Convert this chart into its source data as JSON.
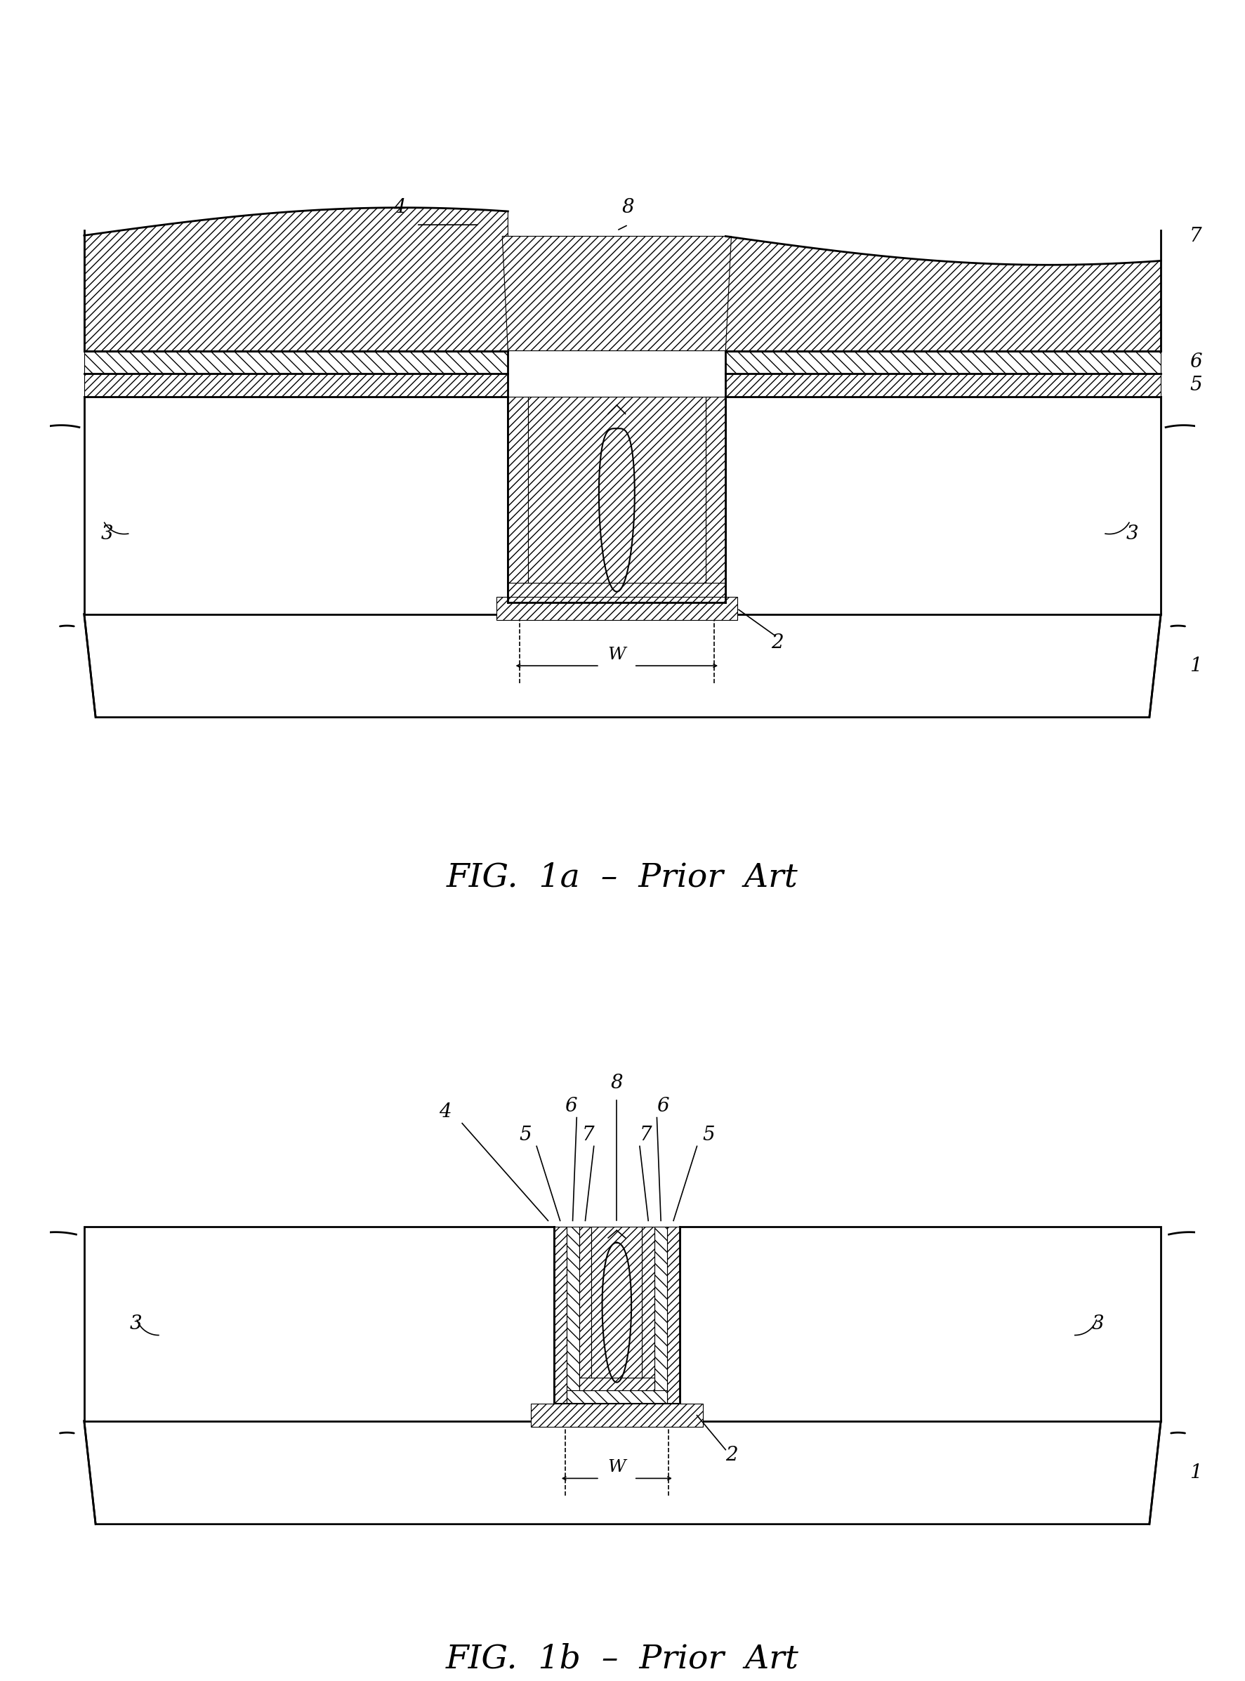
{
  "fig_width": 17.73,
  "fig_height": 23.94,
  "background_color": "#ffffff",
  "line_color": "#000000",
  "label_fontsize": 20,
  "caption_fontsize": 34,
  "fig1a_caption": "FIG.  1a  –  Prior  Art",
  "fig1b_caption": "FIG.  1b  –  Prior  Art",
  "lw_main": 2.0,
  "lw_thin": 1.2
}
